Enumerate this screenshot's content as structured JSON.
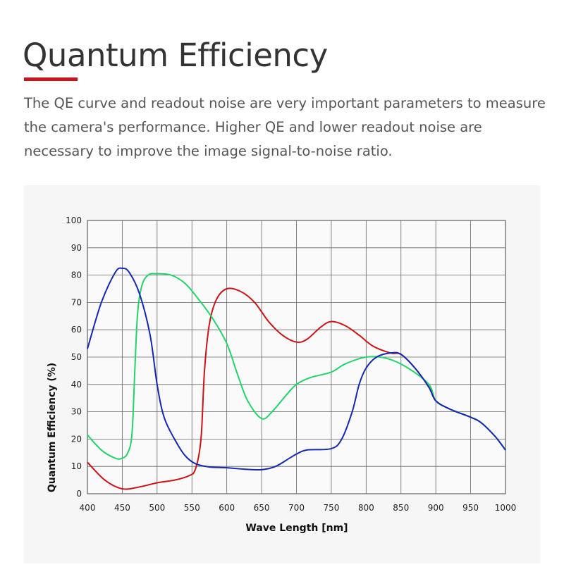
{
  "header": {
    "title": "Quantum Efficiency",
    "description": "The QE curve and readout noise are very important parameters to measure the camera's performance. Higher QE and lower readout noise are necessary to improve the image signal-to-noise ratio."
  },
  "chart_data": {
    "type": "line",
    "title": "",
    "xlabel": "Wave Length [nm]",
    "ylabel": "Quantum Efficiency (%)",
    "xlim": [
      400,
      1000
    ],
    "ylim": [
      0,
      100
    ],
    "xticks": [
      400,
      450,
      500,
      550,
      600,
      650,
      700,
      750,
      800,
      850,
      900,
      950,
      1000
    ],
    "yticks": [
      0,
      10,
      20,
      30,
      40,
      50,
      60,
      70,
      80,
      90,
      100
    ],
    "grid": true,
    "series": [
      {
        "name": "Red",
        "color": "#cc1417",
        "x": [
          400,
          425,
          450,
          475,
          500,
          525,
          545,
          555,
          563,
          568,
          575,
          585,
          600,
          620,
          640,
          660,
          680,
          700,
          715,
          735,
          750,
          770,
          790,
          810,
          835,
          850,
          870,
          890,
          900,
          920,
          950,
          965,
          985,
          1000
        ],
        "y": [
          11.5,
          5,
          1.8,
          2.5,
          4,
          5,
          6.5,
          9,
          20,
          45,
          62,
          71,
          75,
          74,
          70,
          63,
          58,
          55.5,
          56.5,
          61,
          63,
          61.5,
          58,
          54,
          51.5,
          51,
          46,
          39,
          34,
          31,
          28,
          26,
          21,
          16
        ]
      },
      {
        "name": "Green",
        "color": "#22d46a",
        "x": [
          400,
          420,
          440,
          450,
          458,
          464,
          468,
          472,
          478,
          487,
          500,
          520,
          540,
          560,
          580,
          600,
          615,
          630,
          650,
          665,
          685,
          700,
          720,
          750,
          770,
          800,
          830,
          860,
          890,
          900,
          920,
          950,
          965,
          985,
          1000
        ],
        "y": [
          21.5,
          16,
          13,
          13,
          15,
          22,
          45,
          66,
          76,
          80,
          80.5,
          80,
          77,
          71,
          64,
          55,
          44,
          34,
          27.5,
          30,
          36,
          40,
          42.5,
          44.5,
          47.5,
          50,
          49.5,
          46,
          40,
          34,
          31,
          28,
          26,
          21,
          16
        ]
      },
      {
        "name": "Blue",
        "color": "#1428b4",
        "x": [
          400,
          420,
          440,
          450,
          460,
          475,
          490,
          500,
          510,
          525,
          540,
          555,
          575,
          600,
          625,
          650,
          670,
          690,
          700,
          715,
          750,
          765,
          780,
          790,
          800,
          815,
          835,
          850,
          870,
          890,
          900,
          920,
          950,
          965,
          985,
          1000
        ],
        "y": [
          53,
          70,
          81,
          82.5,
          81,
          73,
          58,
          40,
          28,
          20,
          14,
          11,
          9.8,
          9.5,
          9,
          8.8,
          10,
          13,
          14.5,
          16,
          16.5,
          20,
          30,
          40,
          46,
          50,
          51.5,
          51,
          46,
          39,
          34,
          31,
          28,
          26,
          21,
          16
        ]
      }
    ]
  }
}
